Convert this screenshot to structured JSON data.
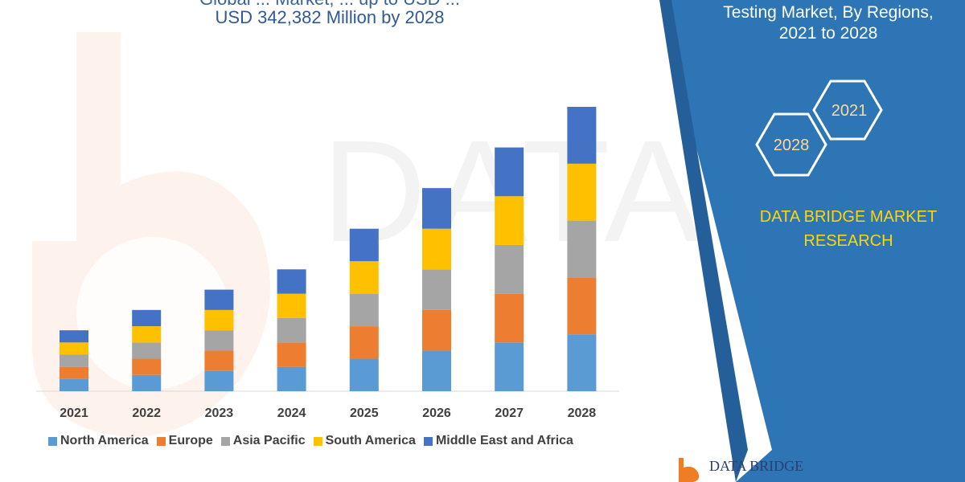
{
  "titles": {
    "line1": "Global ... Market, ... up to USD ...",
    "line2": "USD 342,382 Million by 2028",
    "right_line1": "Testing Market, By Regions,",
    "right_line2": "2021 to 2028"
  },
  "brand": {
    "line1": "DATA BRIDGE MARKET",
    "line2": "RESEARCH",
    "footer_logo_text": "DATA BRIDGE"
  },
  "badges": {
    "year_start": "2021",
    "year_end": "2028"
  },
  "colors": {
    "panel_blue": "#2e75b6",
    "title_blue": "#2f5a96",
    "brand_yellow": "#ffd700"
  },
  "chart_data": {
    "type": "bar",
    "stacked": true,
    "categories": [
      "2021",
      "2022",
      "2023",
      "2024",
      "2025",
      "2026",
      "2027",
      "2028"
    ],
    "series": [
      {
        "name": "North America",
        "color": "#5b9bd5",
        "values": [
          15,
          20,
          25,
          30,
          40,
          50,
          60,
          70
        ]
      },
      {
        "name": "Europe",
        "color": "#ed7d31",
        "values": [
          15,
          20,
          25,
          30,
          40,
          50,
          60,
          70
        ]
      },
      {
        "name": "Asia Pacific",
        "color": "#a5a5a5",
        "values": [
          15,
          20,
          25,
          30,
          40,
          50,
          60,
          70
        ]
      },
      {
        "name": "South America",
        "color": "#ffc000",
        "values": [
          15,
          20,
          25,
          30,
          40,
          50,
          60,
          70
        ]
      },
      {
        "name": "Middle East and Africa",
        "color": "#4472c4",
        "values": [
          15,
          20,
          25,
          30,
          40,
          50,
          60,
          70
        ]
      }
    ],
    "grid": false,
    "legend": "bottom"
  }
}
